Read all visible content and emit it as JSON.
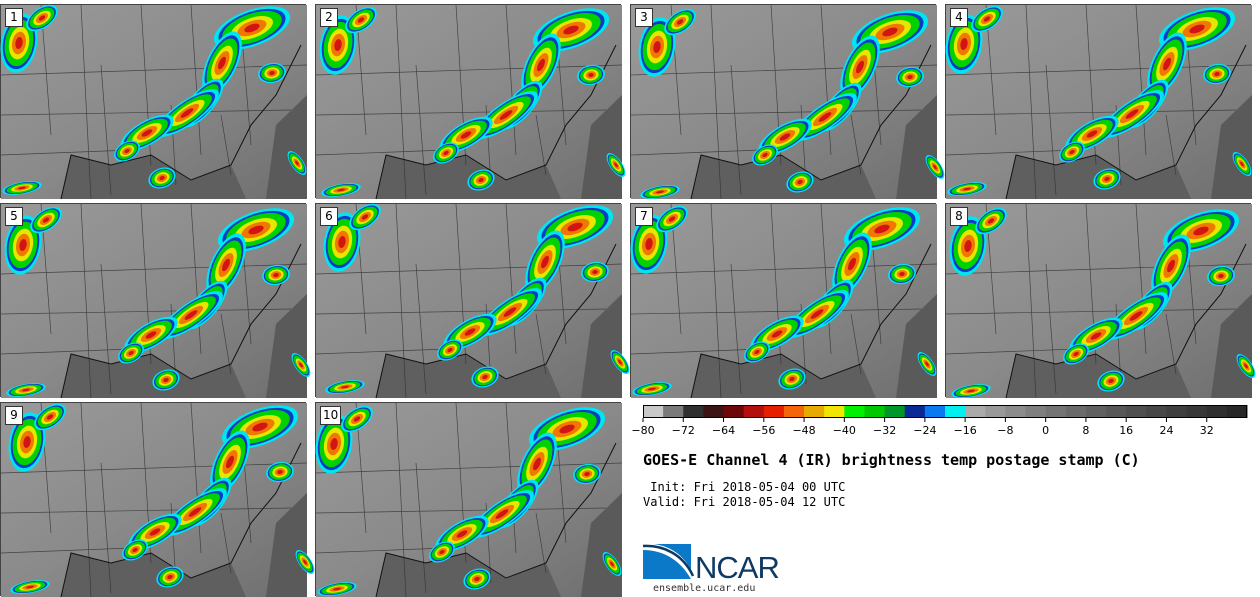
{
  "chart_data": {
    "type": "heatmap",
    "title": "GOES-E Channel 4 (IR) brightness temp postage stamp (C)",
    "init_label": " Init: Fri 2018-05-04 00 UTC",
    "valid_label": "Valid: Fri 2018-05-04 12 UTC",
    "panels": [
      "1",
      "2",
      "3",
      "4",
      "5",
      "6",
      "7",
      "8",
      "9",
      "10"
    ],
    "colorbar": {
      "min": -80,
      "max": 40,
      "step": 4,
      "ticks": [
        -80,
        -72,
        -64,
        -56,
        -48,
        -40,
        -32,
        -24,
        -16,
        -8,
        0,
        8,
        16,
        24,
        32
      ],
      "tick_labels": [
        "−80",
        "−72",
        "−64",
        "−56",
        "−48",
        "−40",
        "−32",
        "−24",
        "−16",
        "−8",
        "0",
        "8",
        "16",
        "24",
        "32"
      ],
      "colors": [
        "#c8c8c8",
        "#7a7a7a",
        "#303030",
        "#3c1414",
        "#6e0808",
        "#b40f0f",
        "#e61e00",
        "#f5640a",
        "#e6aa00",
        "#f0e600",
        "#00f000",
        "#00c800",
        "#009628",
        "#0a2896",
        "#0a78f0",
        "#00f0f0",
        "#aaaaaa",
        "#999999",
        "#8c8c8c",
        "#7f7f7f",
        "#747474",
        "#6a6a6a",
        "#606060",
        "#575757",
        "#4f4f4f",
        "#474747",
        "#3f3f3f",
        "#383838",
        "#303030",
        "#282828"
      ]
    }
  },
  "footer": {
    "logo_text": "NCAR",
    "url": "ensemble.ucar.edu"
  }
}
